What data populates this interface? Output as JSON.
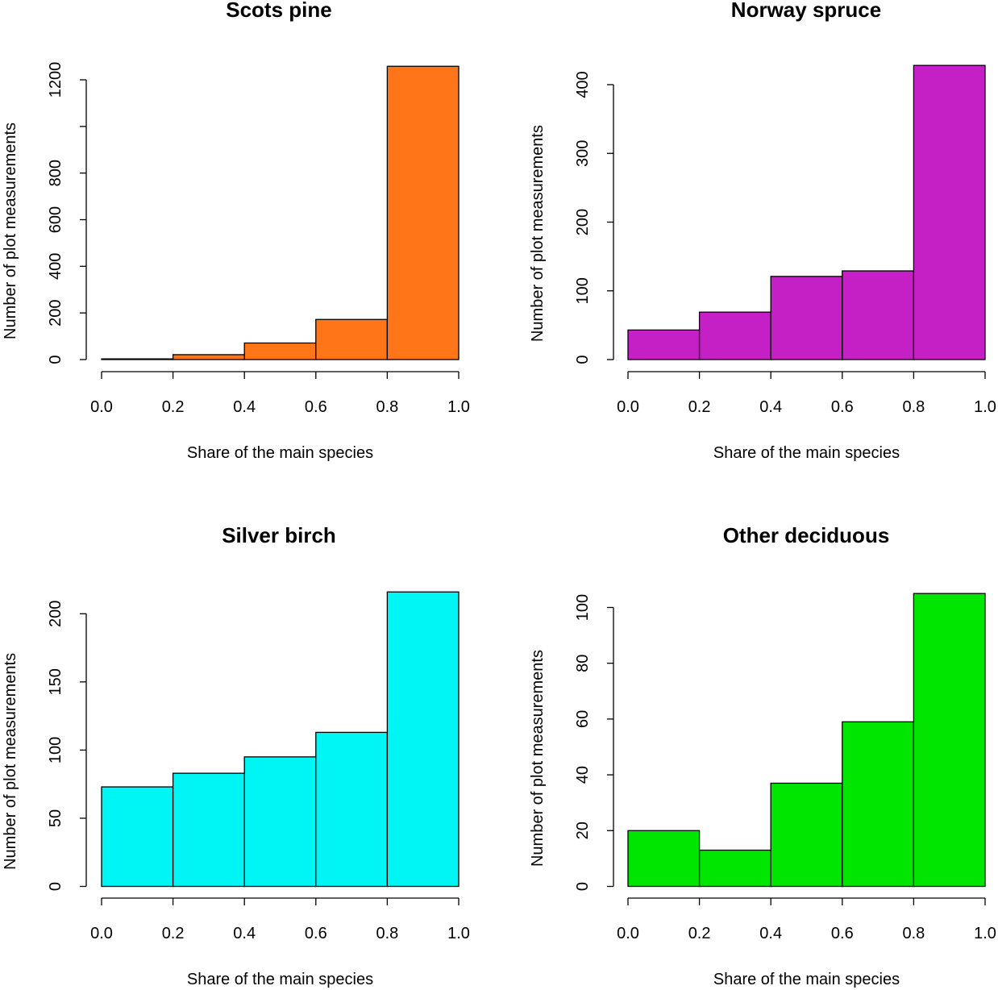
{
  "chart_data": [
    {
      "type": "bar",
      "title": "Scots pine",
      "xlabel": "Share of the main species",
      "ylabel": "Number of plot measurements",
      "bins": [
        [
          0.0,
          0.2
        ],
        [
          0.2,
          0.4
        ],
        [
          0.4,
          0.6
        ],
        [
          0.6,
          0.8
        ],
        [
          0.8,
          1.0
        ]
      ],
      "values": [
        3,
        21,
        71,
        172,
        1258
      ],
      "color": "#FF7518",
      "xlim": [
        0,
        1
      ],
      "xticks": [
        "0.0",
        "0.2",
        "0.4",
        "0.6",
        "0.8",
        "1.0"
      ],
      "ylim": [
        0,
        1200
      ],
      "yticks": [
        0,
        200,
        400,
        600,
        800,
        1000,
        1200
      ],
      "ytick_labels": [
        "0",
        "200",
        "400",
        "600",
        "800",
        "",
        "1200"
      ],
      "grid": false
    },
    {
      "type": "bar",
      "title": "Norway spruce",
      "xlabel": "Share of the main species",
      "ylabel": "Number of plot measurements",
      "bins": [
        [
          0.0,
          0.2
        ],
        [
          0.2,
          0.4
        ],
        [
          0.4,
          0.6
        ],
        [
          0.6,
          0.8
        ],
        [
          0.8,
          1.0
        ]
      ],
      "values": [
        43,
        69,
        121,
        129,
        428
      ],
      "color": "#C520C5",
      "xlim": [
        0,
        1
      ],
      "xticks": [
        "0.0",
        "0.2",
        "0.4",
        "0.6",
        "0.8",
        "1.0"
      ],
      "ylim": [
        0,
        400
      ],
      "yticks": [
        0,
        100,
        200,
        300,
        400
      ],
      "ytick_labels": [
        "0",
        "100",
        "200",
        "300",
        "400"
      ],
      "grid": false
    },
    {
      "type": "bar",
      "title": "Silver birch",
      "xlabel": "Share of the main species",
      "ylabel": "Number of plot measurements",
      "bins": [
        [
          0.0,
          0.2
        ],
        [
          0.2,
          0.4
        ],
        [
          0.4,
          0.6
        ],
        [
          0.6,
          0.8
        ],
        [
          0.8,
          1.0
        ]
      ],
      "values": [
        73,
        83,
        95,
        113,
        216
      ],
      "color": "#00F5F5",
      "xlim": [
        0,
        1
      ],
      "xticks": [
        "0.0",
        "0.2",
        "0.4",
        "0.6",
        "0.8",
        "1.0"
      ],
      "ylim": [
        0,
        200
      ],
      "yticks": [
        0,
        50,
        100,
        150,
        200
      ],
      "ytick_labels": [
        "0",
        "50",
        "100",
        "150",
        "200"
      ],
      "grid": false
    },
    {
      "type": "bar",
      "title": "Other deciduous",
      "xlabel": "Share of the main species",
      "ylabel": "Number of plot measurements",
      "bins": [
        [
          0.0,
          0.2
        ],
        [
          0.2,
          0.4
        ],
        [
          0.4,
          0.6
        ],
        [
          0.6,
          0.8
        ],
        [
          0.8,
          1.0
        ]
      ],
      "values": [
        20,
        13,
        37,
        59,
        105
      ],
      "color": "#00E600",
      "xlim": [
        0,
        1
      ],
      "xticks": [
        "0.0",
        "0.2",
        "0.4",
        "0.6",
        "0.8",
        "1.0"
      ],
      "ylim": [
        0,
        100
      ],
      "yticks": [
        0,
        20,
        40,
        60,
        80,
        100
      ],
      "ytick_labels": [
        "0",
        "20",
        "40",
        "60",
        "80",
        "100"
      ],
      "grid": false
    }
  ]
}
